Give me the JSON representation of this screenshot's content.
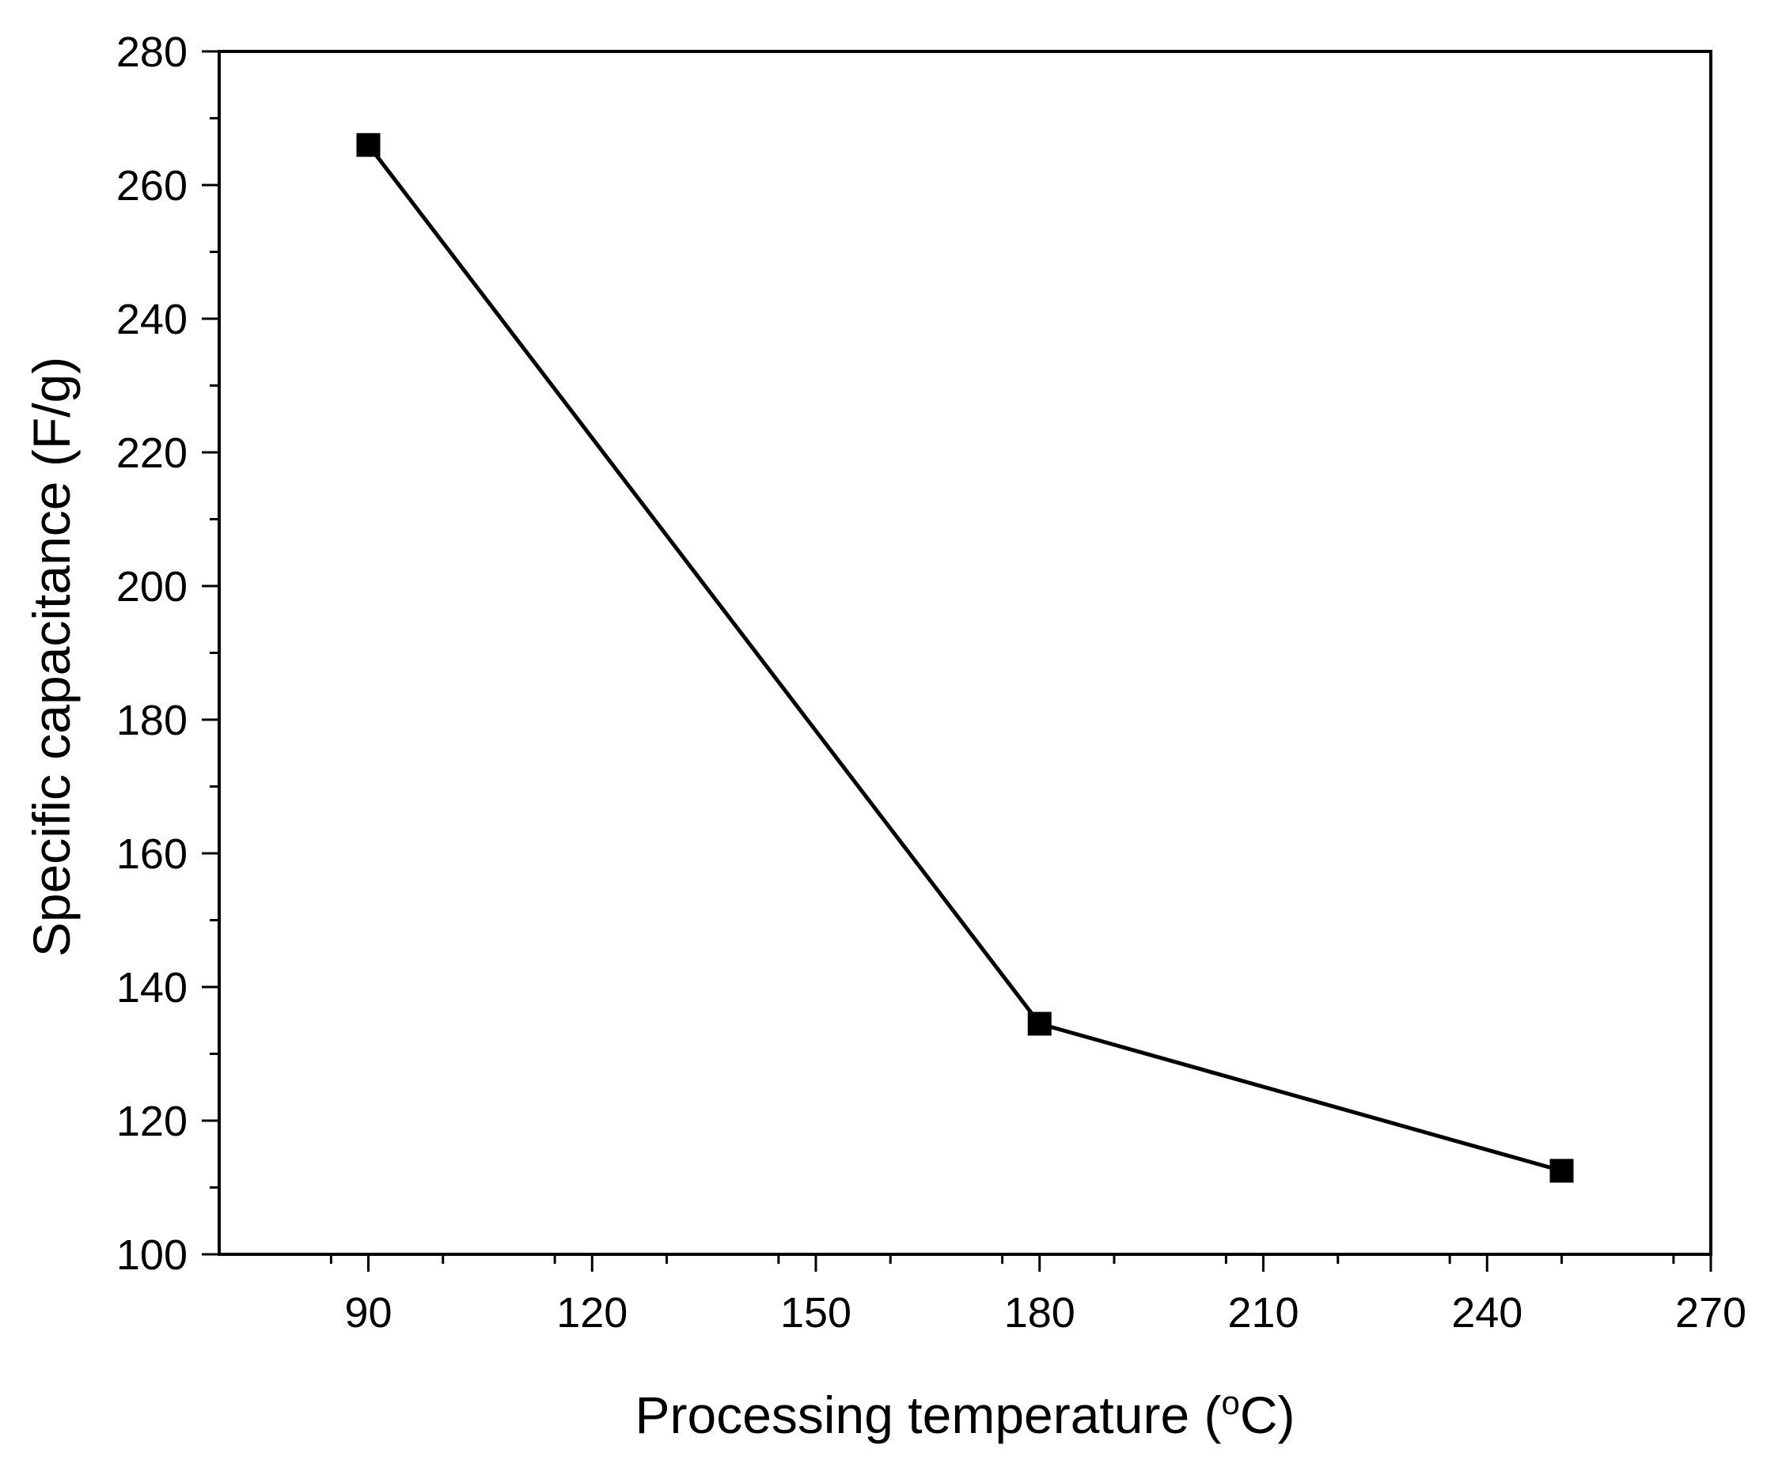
{
  "chart_data": {
    "type": "line",
    "title": "",
    "xlabel": "Processing temperature (",
    "xlabel_unit_sup": "o",
    "xlabel_unit_tail": "C)",
    "ylabel": "Specific capacitance (F/g)",
    "xlim": [
      70,
      270
    ],
    "ylim": [
      100,
      280
    ],
    "xticks": [
      90,
      120,
      150,
      180,
      210,
      240,
      270
    ],
    "yticks": [
      100,
      120,
      140,
      160,
      180,
      200,
      220,
      240,
      260,
      280
    ],
    "x_minor_step": 15,
    "y_minor_step": 10,
    "grid": false,
    "legend": "none",
    "series": [
      {
        "name": "Specific capacitance",
        "marker": "square",
        "color": "#000000",
        "x": [
          90,
          180,
          250
        ],
        "y": [
          266,
          134.5,
          112.5
        ]
      }
    ]
  }
}
